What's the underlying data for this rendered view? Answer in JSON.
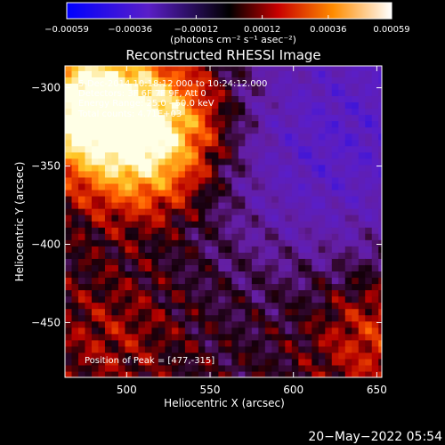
{
  "chart_data": {
    "type": "heatmap",
    "title": "Reconstructed RHESSI Image",
    "xlabel": "Heliocentric X (arcsec)",
    "ylabel": "Heliocentric Y (arcsec)",
    "xlim": [
      463,
      653
    ],
    "ylim": [
      -485,
      -286
    ],
    "xticks": [
      500,
      550,
      600,
      650
    ],
    "xtick_labels": [
      "500",
      "550",
      "600",
      "650"
    ],
    "yticks": [
      -300,
      -350,
      -400,
      -450
    ],
    "ytick_labels": [
      "−300",
      "−350",
      "−400",
      "−450"
    ],
    "colorbar": {
      "label": "(photons cm⁻² s⁻¹ asec⁻²)",
      "range": [
        -0.00059,
        0.00059
      ],
      "ticks": [
        -0.00059,
        -0.00036,
        -0.00012,
        0.00012,
        0.00036,
        0.00059
      ],
      "tick_labels": [
        "−0.00059",
        "−0.00036",
        "−0.00012",
        "0.00012",
        "0.00036",
        "0.00059"
      ]
    },
    "annotations": [
      "5-Dec-2014 10:18:12.000 to 10:24:12.000",
      "Detectors: 3F 6F 7F 9F, Att 0",
      "Energy Range: 25.0 - 50.0 keV",
      "Total counts: 4.71E+03",
      "Position of Peak = [477,-315]"
    ],
    "peak": [
      477,
      -315
    ],
    "sources": [
      {
        "x": 475,
        "y": -312,
        "intensity": 1.0
      },
      {
        "x": 527,
        "y": -318,
        "intensity": 0.45
      },
      {
        "x": 508,
        "y": -347,
        "intensity": 0.6
      },
      {
        "x": 648,
        "y": -460,
        "intensity": 0.35
      },
      {
        "x": 490,
        "y": -460,
        "intensity": 0.2
      }
    ],
    "negative_region": {
      "x": 615,
      "y": -345,
      "intensity": -0.45
    }
  },
  "footer": {
    "timestamp": "20−May−2022 05:54"
  },
  "colors": {
    "background": "#000000",
    "text": "#ffffff"
  }
}
